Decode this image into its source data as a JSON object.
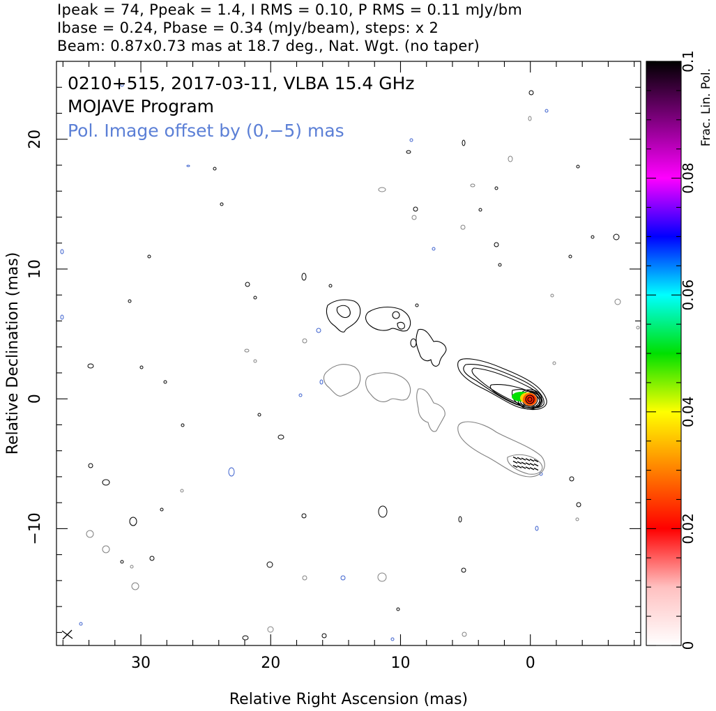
{
  "header": {
    "line1": "Ipeak = 74, Ppeak = 1.4, I RMS = 0.10, P RMS = 0.11 mJy/bm",
    "line2": "Ibase = 0.24, Pbase = 0.34 (mJy/beam), steps: x 2",
    "line3": "Beam: 0.87x0.73 mas at 18.7 deg., Nat. Wgt. (no taper)"
  },
  "inset": {
    "source_line": "0210+515, 2017-03-11, VLBA 15.4 GHz",
    "program_line": "MOJAVE Program",
    "pol_note": "Pol. Image offset by (0,−5) mas"
  },
  "colors": {
    "total_intensity_contour": "#000000",
    "polarized_contour": "#808080",
    "negative_contour": "#3a5fcd",
    "pol_note_text": "#5b7fd6"
  },
  "chart_data": {
    "type": "contour",
    "xlabel": "Relative Right Ascension (mas)",
    "ylabel": "Relative Declination (mas)",
    "xlim": [
      36.5,
      -8.5
    ],
    "ylim": [
      -19,
      26
    ],
    "x_ticks": [
      "30",
      "20",
      "10",
      "0"
    ],
    "y_ticks": [
      "−10",
      "0",
      "10",
      "20"
    ],
    "x_tick_values": [
      30,
      20,
      10,
      0
    ],
    "y_tick_values": [
      -10,
      0,
      10,
      20
    ],
    "colorbar": {
      "label": "Frac. Lin. Pol.",
      "range": [
        0,
        0.1
      ],
      "ticks": [
        "0",
        "0.02",
        "0.04",
        "0.06",
        "0.08",
        "0.1"
      ],
      "tick_values": [
        0,
        0.02,
        0.04,
        0.06,
        0.08,
        0.1
      ]
    },
    "core": {
      "x": 0.1,
      "y": 0.1,
      "frac_pol": 0.02
    },
    "jet_ridge": [
      {
        "x": 0.0,
        "y": 0.0
      },
      {
        "x": 3.5,
        "y": 1.5
      },
      {
        "x": 8.0,
        "y": 3.5
      },
      {
        "x": 12.0,
        "y": 4.8
      },
      {
        "x": 15.0,
        "y": 6.5
      }
    ],
    "polarized_core_offset": {
      "x": 0.0,
      "y": -5.0
    }
  }
}
